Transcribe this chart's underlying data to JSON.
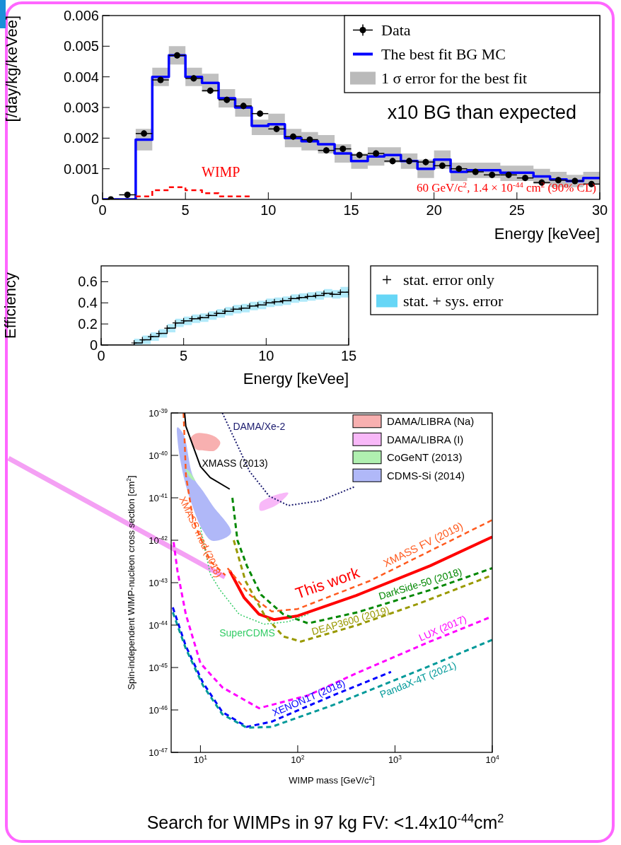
{
  "chart_data": [
    {
      "type": "step",
      "ylabel": "[/day/kg/keVee]",
      "xlabel": "Energy [keVee]",
      "xlim": [
        0,
        30
      ],
      "ylim": [
        0,
        0.006
      ],
      "xticks": [
        0,
        5,
        10,
        15,
        20,
        25,
        30
      ],
      "yticks": [
        0,
        0.001,
        0.002,
        0.003,
        0.004,
        0.005,
        0.006
      ],
      "legend": "top right",
      "annotations": [
        "WIMP",
        "60 GeV/c$^{2}$, 1.4 × 10$^{-44}$ cm$^{2}$ (90% CL)",
        "x10 BG than expected"
      ],
      "series": [
        {
          "name": "Data",
          "type": "scatter",
          "color": "#000000",
          "marker": "circle",
          "x": [
            0.5,
            1.5,
            2.5,
            3.5,
            4.5,
            5.5,
            6.5,
            7.5,
            8.5,
            9.5,
            10.5,
            11.5,
            12.5,
            13.5,
            14.5,
            15.5,
            16.5,
            17.5,
            18.5,
            19.5,
            20.5,
            21.5,
            22.5,
            23.5,
            24.5,
            25.5,
            26.5,
            27.5,
            28.5,
            29.5
          ],
          "values": [
            0,
            0.00015,
            0.00215,
            0.0039,
            0.0047,
            0.00395,
            0.00355,
            0.00325,
            0.00305,
            0.0028,
            0.0023,
            0.00205,
            0.00195,
            0.0016,
            0.00165,
            0.00145,
            0.0015,
            0.00125,
            0.00125,
            0.00122,
            0.0011,
            0.001,
            0.0009,
            0.0008,
            0.0008,
            0.0007,
            0.00055,
            0.00063,
            0.0006,
            0.0005
          ],
          "errors": [
            null,
            0.0001,
            0.0001,
            0.0001,
            0.0001,
            0.0001,
            0.0001,
            0.0001,
            0.0001,
            0.0001,
            0.0001,
            0.0001,
            0.0001,
            0.0001,
            0.0001,
            0.0001,
            0.0001,
            0.0001,
            0.0001,
            0.0001,
            0.0001,
            0.0001,
            0.0001,
            0.0001,
            0.0001,
            0.0001,
            0.0001,
            0.0001,
            0.0001,
            0.0001
          ],
          "xerrors": [
            0.5,
            0.5,
            0.5,
            0.5,
            0.5,
            0.5,
            0.5,
            0.5,
            0.5,
            0.5,
            0.5,
            0.5,
            0.5,
            0.5,
            0.5,
            0.5,
            0.5,
            0.5,
            0.5,
            0.5,
            0.5,
            0.5,
            0.5,
            0.5,
            0.5,
            0.5,
            0.5,
            0.5,
            0.5,
            0.5
          ]
        },
        {
          "name": "The best fit BG MC",
          "type": "step",
          "color": "#0000ff",
          "x": [
            0,
            1,
            2,
            3,
            4,
            5,
            6,
            7,
            8,
            9,
            10,
            11,
            12,
            13,
            14,
            15,
            16,
            17,
            18,
            19,
            20,
            21,
            22,
            23,
            24,
            25,
            26,
            27,
            28,
            29,
            30
          ],
          "values": [
            0,
            0,
            0.00195,
            0.004,
            0.0047,
            0.004,
            0.0038,
            0.0033,
            0.003,
            0.0024,
            0.00245,
            0.002,
            0.0019,
            0.0018,
            0.0015,
            0.00125,
            0.0014,
            0.00145,
            0.00125,
            0.001,
            0.0013,
            0.0009,
            0.00095,
            0.00095,
            0.00087,
            0.00087,
            0.00075,
            0.00065,
            0.0006,
            0.0007,
            0.0007
          ],
          "upper": [
            null,
            null,
            0.0023,
            0.0043,
            0.005,
            0.0043,
            0.0041,
            0.0036,
            0.0033,
            0.0026,
            0.0028,
            0.0023,
            0.0022,
            0.0021,
            0.0018,
            0.0015,
            0.0017,
            0.0017,
            0.0015,
            0.0013,
            0.0016,
            0.0012,
            0.0012,
            0.0012,
            0.0011,
            0.0011,
            0.001,
            0.0009,
            0.0008,
            0.0009,
            0.0009
          ],
          "lower": [
            null,
            null,
            0.0016,
            0.0037,
            0.0044,
            0.0037,
            0.0035,
            0.003,
            0.0027,
            0.0021,
            0.0021,
            0.0017,
            0.0016,
            0.0015,
            0.0012,
            0.001,
            0.0011,
            0.0012,
            0.001,
            0.0007,
            0.001,
            0.0006,
            0.0007,
            0.0007,
            0.0006,
            0.0006,
            0.0005,
            0.0004,
            0.0004,
            0.0005,
            0.0005
          ]
        },
        {
          "name": "1 σ error for the best fit",
          "type": "area",
          "color": "#8c8c8c"
        },
        {
          "type": "step",
          "color": "#ff0000",
          "line_style": "dashed",
          "x": [
            2,
            3,
            4,
            5,
            6,
            7,
            8,
            9
          ],
          "values": [
            0.0001,
            0.0003,
            0.0004,
            0.0003,
            0.0002,
            0.0001,
            0.0001,
            0.0001
          ]
        }
      ]
    },
    {
      "type": "step",
      "ylabel": "Efficiency",
      "xlabel": "Energy [keVee]",
      "xlim": [
        0,
        15
      ],
      "ylim": [
        0,
        0.75
      ],
      "xticks": [
        0,
        5,
        10,
        15
      ],
      "yticks": [
        0,
        0.2,
        0.4,
        0.6
      ],
      "legend": "right",
      "series": [
        {
          "name": "stat. error only",
          "type": "step",
          "color": "#000000",
          "marker": "cross",
          "x": [
            0,
            2,
            2.5,
            3,
            3.5,
            4,
            4.5,
            5,
            5.5,
            6,
            6.5,
            7,
            7.5,
            8,
            8.5,
            9,
            9.5,
            10,
            10.5,
            11,
            11.5,
            12,
            12.5,
            13,
            13.5,
            14,
            14.5,
            15
          ],
          "values": [
            0,
            0.02,
            0.05,
            0.08,
            0.11,
            0.16,
            0.21,
            0.23,
            0.25,
            0.26,
            0.28,
            0.3,
            0.32,
            0.34,
            0.35,
            0.37,
            0.38,
            0.4,
            0.41,
            0.42,
            0.44,
            0.45,
            0.46,
            0.47,
            0.49,
            0.48,
            0.5,
            0.5
          ],
          "upper": [
            null,
            0.06,
            0.09,
            0.12,
            0.15,
            0.2,
            0.25,
            0.27,
            0.29,
            0.3,
            0.32,
            0.34,
            0.36,
            0.38,
            0.39,
            0.41,
            0.42,
            0.44,
            0.45,
            0.46,
            0.48,
            0.49,
            0.5,
            0.51,
            0.53,
            0.52,
            0.55,
            0.55
          ],
          "lower": [
            null,
            0,
            0.01,
            0.04,
            0.07,
            0.12,
            0.17,
            0.19,
            0.21,
            0.22,
            0.24,
            0.26,
            0.28,
            0.3,
            0.31,
            0.33,
            0.34,
            0.36,
            0.37,
            0.38,
            0.4,
            0.41,
            0.42,
            0.43,
            0.45,
            0.44,
            0.45,
            0.45
          ]
        },
        {
          "name": "stat. + sys. error",
          "type": "area",
          "color": "#00bbf0"
        }
      ]
    },
    {
      "type": "line",
      "log": "xy",
      "ylabel": "Spin-independent WIMP-nucleon cross section [cm$^{2}$]",
      "xlabel": "WIMP mass [GeV/c$^{2}$]",
      "xlim": [
        5,
        10000
      ],
      "ylim": [
        1e-47,
        1e-39
      ],
      "xticks": [
        {
          "value": 10,
          "label": "10$^{1}$"
        },
        {
          "value": 100,
          "label": "10$^{2}$"
        },
        {
          "value": 1000,
          "label": "10$^{3}$"
        },
        {
          "value": 10000,
          "label": "10$^{4}$"
        }
      ],
      "yticks": [
        {
          "value": 1e-47,
          "label": "10$^{-47}$"
        },
        {
          "value": 1e-46,
          "label": "10$^{-46}$"
        },
        {
          "value": 1e-45,
          "label": "10$^{-45}$"
        },
        {
          "value": 1e-44,
          "label": "10$^{-44}$"
        },
        {
          "value": 1e-43,
          "label": "10$^{-43}$"
        },
        {
          "value": 1e-42,
          "label": "10$^{-42}$"
        },
        {
          "value": 1e-41,
          "label": "10$^{-41}$"
        },
        {
          "value": 1e-40,
          "label": "10$^{-40}$"
        },
        {
          "value": 1e-39,
          "label": "10$^{-39}$"
        }
      ],
      "legend": "top right",
      "annotations": [
        "Search for WIMPs in 97 kg FV: <1.4x10$^{-44}$cm$^{2}$"
      ],
      "series": [
        {
          "name": "DAMA/LIBRA (Na)",
          "type": "area",
          "color": "#f8b0b0",
          "x": [
            7.9,
            9,
            11,
            14,
            16,
            14,
            11,
            9
          ],
          "values": [
            2.5e-40,
            3.3e-40,
            3.3e-40,
            2.8e-40,
            2e-40,
            1.3e-40,
            1.3e-40,
            1.4e-40
          ]
        },
        {
          "name": "DAMA/LIBRA (I)",
          "type": "area",
          "color": "#f8b8f8",
          "x": [
            41,
            50,
            62,
            80,
            62,
            50,
            41
          ],
          "values": [
            7.5e-42,
            1e-41,
            1.2e-41,
            1.3e-41,
            7e-42,
            5.5e-42,
            5e-42
          ]
        },
        {
          "name": "CoGeNT (2013)",
          "type": "area",
          "color": "#b0f0b0",
          "x": [
            7.05,
            7.8,
            8.8,
            7.8
          ],
          "values": [
            4.8e-41,
            4e-41,
            2.5e-41,
            3e-41
          ]
        },
        {
          "name": "CDMS-Si (2014)",
          "type": "area",
          "color": "#b0b8f8",
          "x": [
            5.8,
            6.7,
            8.4,
            10.6,
            13.3,
            20.6,
            13.3,
            10.6,
            8.4,
            6.7,
            5.8
          ],
          "values": [
            4.6e-40,
            3.1e-40,
            3.2e-41,
            1.45e-41,
            6.6e-42,
            1.5e-42,
            9.7e-43,
            1.7e-42,
            5.8e-42,
            3.2e-41,
            2.4e-40
          ]
        },
        {
          "name": "This work",
          "color": "#ff0000",
          "line_style": "solid",
          "x": [
            20,
            28,
            40,
            57,
            100,
            400,
            2300,
            10000
          ],
          "values": [
            1.9e-43,
            4.5e-44,
            1.8e-44,
            1.35e-44,
            1.65e-44,
            5e-44,
            2.5e-43,
            1.2e-42
          ]
        },
        {
          "name": "XMASS FV (2019)",
          "color": "#ff5a1e",
          "line_style": "dashed",
          "x": [
            19,
            32,
            54,
            100,
            550,
            10000
          ],
          "values": [
            2.2e-43,
            5.2e-44,
            2.1e-44,
            2.4e-44,
            1.1e-43,
            3e-42
          ]
        },
        {
          "name": "XMASS mod (2018)",
          "color": "#ff5a1e",
          "line_style": "dashed",
          "x": [
            6.7,
            7.1,
            8.4,
            12.6,
            18
          ],
          "values": [
            1e-39,
            3.3e-41,
            3e-42,
            3.2e-43,
            1.5e-43
          ]
        },
        {
          "name": "XMASS (2013)",
          "color": "#000000",
          "line_style": "solid",
          "x": [
            6.88,
            7.07,
            10,
            12.6,
            20
          ],
          "values": [
            1e-39,
            4.9e-40,
            5.5e-41,
            3e-41,
            1.6e-41
          ]
        },
        {
          "name": "DAMA/Xe-2",
          "color": "#1a1a6e",
          "line_style": "dotted",
          "x": [
            16.8,
            32,
            50.8,
            80,
            170,
            380
          ],
          "values": [
            1e-39,
            4.2e-41,
            1.1e-41,
            6.6e-42,
            8.5e-42,
            1.8e-41
          ]
        },
        {
          "name": "DarkSide-50 (2018)",
          "color": "#008800",
          "line_style": "dashed",
          "x": [
            21.3,
            24,
            30,
            42,
            71,
            128,
            410,
            2300,
            10000
          ],
          "values": [
            1e-41,
            1e-42,
            2.5e-43,
            5.2e-44,
            1.8e-44,
            1.1e-44,
            2e-44,
            6.7e-44,
            2.2e-43
          ]
        },
        {
          "name": "DEAP3600 (2019)",
          "color": "#999900",
          "line_style": "dashed",
          "x": [
            22,
            29,
            45,
            71,
            108,
            410,
            1750,
            10000
          ],
          "values": [
            1e-42,
            1.1e-43,
            1.8e-44,
            5.4e-45,
            4.1e-45,
            1e-44,
            3.2e-44,
            1.5e-43
          ]
        },
        {
          "name": "SuperCDMS",
          "color": "#33cc66",
          "line_style": "dotted",
          "x": [
            10,
            12.6,
            15.9,
            25,
            45,
            80,
            128
          ],
          "values": [
            2e-42,
            1.6e-43,
            6.7e-44,
            1.8e-44,
            1.05e-44,
            1.2e-44,
            1.8e-44
          ]
        },
        {
          "name": "LUX (2017)",
          "color": "#ff00ff",
          "line_style": "dashed",
          "x": [
            5.3,
            5.6,
            5.8,
            7.07,
            10,
            16.8,
            40,
            128,
            410,
            2300,
            9300
          ],
          "values": [
            9e-43,
            3.5e-43,
            1.9e-43,
            1.8e-44,
            1.26e-45,
            3.4e-46,
            1.1e-46,
            2.2e-46,
            7.5e-46,
            4.1e-45,
            1.5e-44
          ]
        },
        {
          "name": "XENON1T (2018)",
          "color": "#0000ff",
          "line_style": "dashed",
          "x": [
            5.2,
            7.07,
            10.6,
            16.8,
            30,
            54,
            230,
            910
          ],
          "values": [
            2.6e-44,
            3.2e-45,
            4.4e-46,
            8.9e-47,
            4e-47,
            5.3e-47,
            2.2e-46,
            7.9e-46
          ]
        },
        {
          "name": "PandaX-4T (2021)",
          "color": "#009999",
          "line_style": "dashed",
          "x": [
            5.2,
            7.07,
            10.6,
            16.8,
            30,
            54,
            230,
            2300,
            10000
          ],
          "values": [
            2e-44,
            2.8e-45,
            3.8e-46,
            7.9e-47,
            3.8e-47,
            4e-47,
            1.3e-46,
            1.1e-45,
            4.5e-45
          ]
        }
      ]
    }
  ]
}
